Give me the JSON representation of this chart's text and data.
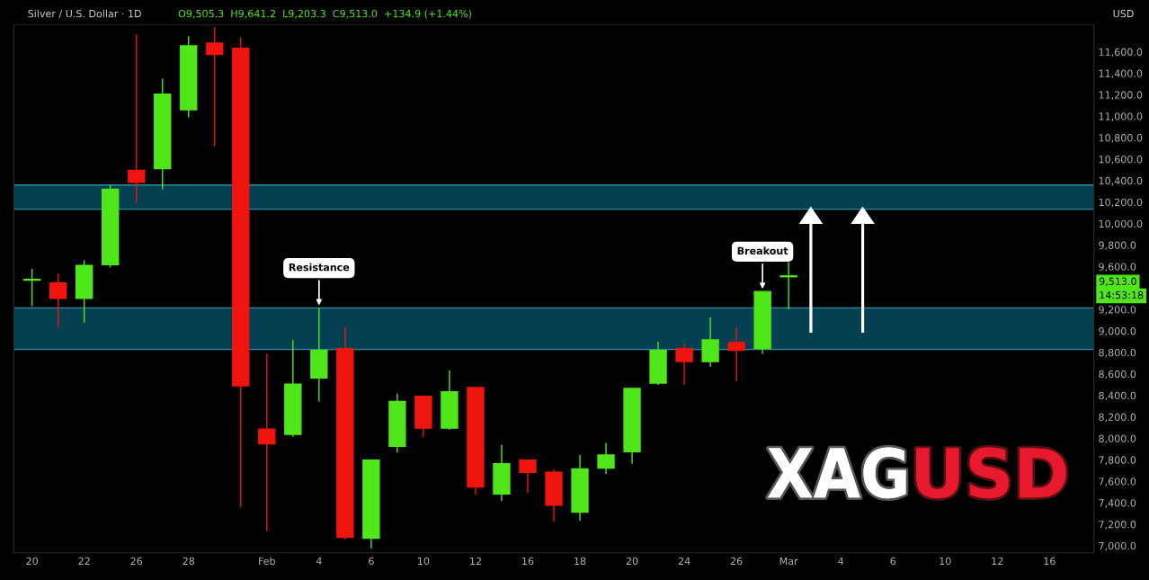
{
  "chart_data": {
    "type": "candlestick",
    "title": "Silver / U.S. Dollar · 1D",
    "ylabel": "USD",
    "categories": [
      "20",
      null,
      "22",
      null,
      "26",
      null,
      "28",
      null,
      null,
      "Feb",
      null,
      "4",
      null,
      "6",
      null,
      "10",
      null,
      "12",
      null,
      "16",
      null,
      "18",
      null,
      "20",
      null,
      "24",
      null,
      "26",
      null,
      "Mar",
      null,
      "4",
      null,
      "6",
      null,
      "10",
      null,
      "12",
      null,
      "16",
      null
    ],
    "ohlc": [
      [
        9473,
        9578,
        9231,
        9480
      ],
      [
        9448,
        9537,
        9030,
        9303
      ],
      [
        9303,
        9658,
        9078,
        9610
      ],
      [
        9618,
        10359,
        9594,
        10319
      ],
      [
        10496,
        11761,
        10198,
        10383
      ],
      [
        10512,
        11350,
        10319,
        11205
      ],
      [
        11060,
        11745,
        10990,
        11656
      ],
      [
        11680,
        11830,
        10722,
        11576
      ],
      [
        11632,
        11730,
        7361,
        8490
      ],
      [
        8087,
        8788,
        7136,
        7950
      ],
      [
        8038,
        8917,
        8014,
        8506
      ],
      [
        8562,
        9215,
        8344,
        8820
      ],
      [
        8836,
        9038,
        7055,
        7079
      ],
      [
        7071,
        7797,
        6975,
        7797
      ],
      [
        7926,
        8417,
        7869,
        8344
      ],
      [
        8393,
        8393,
        8014,
        8095
      ],
      [
        8095,
        8635,
        8080,
        8433
      ],
      [
        8474,
        8474,
        7474,
        7547
      ],
      [
        7482,
        7942,
        7418,
        7764
      ],
      [
        7797,
        7797,
        7491,
        7684
      ],
      [
        7684,
        7708,
        7224,
        7378
      ],
      [
        7313,
        7845,
        7233,
        7716
      ],
      [
        7724,
        7958,
        7668,
        7845
      ],
      [
        7877,
        8465,
        7764,
        8465
      ],
      [
        8514,
        8901,
        8498,
        8820
      ],
      [
        8836,
        8885,
        8498,
        8715
      ],
      [
        8715,
        9126,
        8667,
        8917
      ],
      [
        8893,
        9038,
        8530,
        8820
      ],
      [
        8836,
        9368,
        8788,
        9368
      ],
      [
        9505.3,
        9641.2,
        9203.3,
        9513.0
      ],
      null,
      null,
      null,
      null,
      null,
      null,
      null,
      null,
      null,
      null,
      null
    ],
    "colors": [
      "#4fe61a",
      "#f0140f",
      "#4fe61a",
      "#4fe61a",
      "#f0140f",
      "#4fe61a",
      "#4fe61a",
      "#f0140f",
      "#f0140f",
      "#f0140f",
      "#4fe61a",
      "#4fe61a",
      "#f0140f",
      "#4fe61a",
      "#4fe61a",
      "#f0140f",
      "#4fe61a",
      "#f0140f",
      "#4fe61a",
      "#f0140f",
      "#f0140f",
      "#4fe61a",
      "#4fe61a",
      "#4fe61a",
      "#4fe61a",
      "#f0140f",
      "#4fe61a",
      "#f0140f",
      "#4fe61a",
      "#4fe61a",
      null,
      null,
      null,
      null,
      null,
      null,
      null,
      null,
      null,
      null,
      null
    ],
    "ylim": [
      6935,
      11850
    ],
    "yticks": [
      {
        "value": 7000,
        "label": "7,000.0"
      },
      {
        "value": 7200,
        "label": "7,200.0"
      },
      {
        "value": 7400,
        "label": "7,400.0"
      },
      {
        "value": 7600,
        "label": "7,600.0"
      },
      {
        "value": 7800,
        "label": "7,800.0"
      },
      {
        "value": 8000,
        "label": "8,000.0"
      },
      {
        "value": 8200,
        "label": "8,200.0"
      },
      {
        "value": 8400,
        "label": "8,400.0"
      },
      {
        "value": 8600,
        "label": "8,600.0"
      },
      {
        "value": 8800,
        "label": "8,800.0"
      },
      {
        "value": 9000,
        "label": "9,000.0"
      },
      {
        "value": 9200,
        "label": "9,200.0"
      },
      {
        "value": 9600,
        "label": "9,600.0"
      },
      {
        "value": 9800,
        "label": "9,800.0"
      },
      {
        "value": 10000,
        "label": "10,000.0"
      },
      {
        "value": 10200,
        "label": "10,200.0"
      },
      {
        "value": 10400,
        "label": "10,400.0"
      },
      {
        "value": 10600,
        "label": "10,600.0"
      },
      {
        "value": 10800,
        "label": "10,800.0"
      },
      {
        "value": 11000,
        "label": "11,000.0"
      },
      {
        "value": 11200,
        "label": "11,200.0"
      },
      {
        "value": 11400,
        "label": "11,400.0"
      },
      {
        "value": 11600,
        "label": "11,600.0"
      }
    ],
    "bands": [
      {
        "axis": "y",
        "from": 10134,
        "to": 10359,
        "color": "#03566e"
      },
      {
        "axis": "y",
        "from": 8828,
        "to": 9215,
        "color": "#03566e"
      }
    ],
    "grid": false,
    "annotations": [
      "O9,505.3  H9,641.2  L9,203.3  C9,513.0  +134.9 (+1.44%)",
      {
        "text": "Resistance",
        "y": 9215
      },
      {
        "text": "Breakout",
        "y": 9368
      },
      "9,513.0",
      "14:53:18",
      "XAG",
      "USD"
    ]
  }
}
